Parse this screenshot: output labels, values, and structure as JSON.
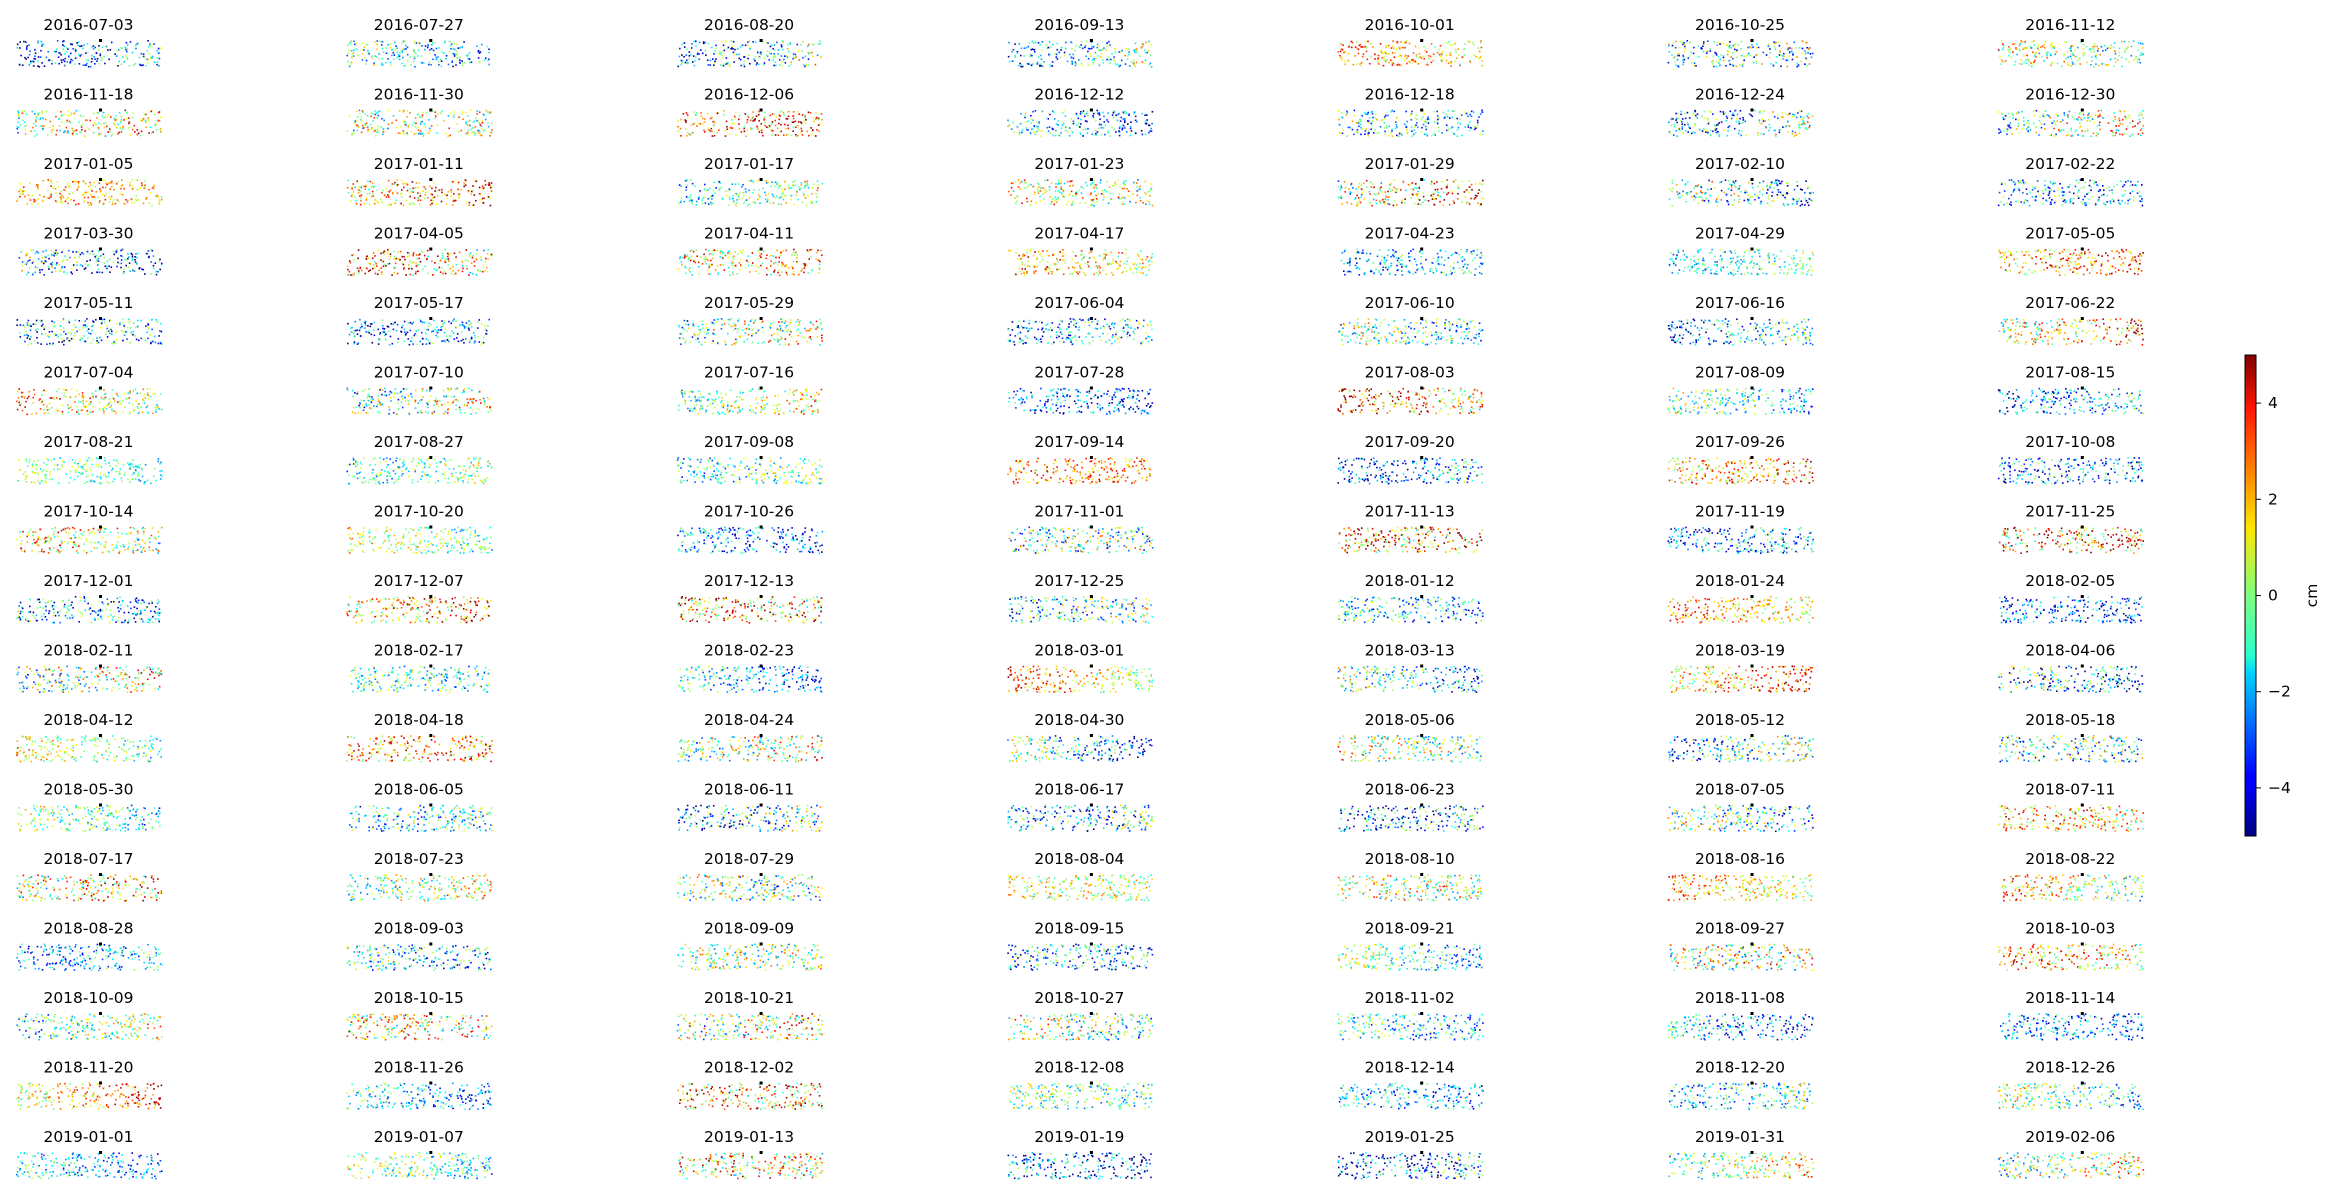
{
  "chart_data": {
    "type": "scatter",
    "layout": {
      "rows": 17,
      "cols": 7
    },
    "panel_titles": [
      "2016-07-03",
      "2016-07-27",
      "2016-08-20",
      "2016-09-13",
      "2016-10-01",
      "2016-10-25",
      "2016-11-12",
      "2016-11-18",
      "2016-11-30",
      "2016-12-06",
      "2016-12-12",
      "2016-12-18",
      "2016-12-24",
      "2016-12-30",
      "2017-01-05",
      "2017-01-11",
      "2017-01-17",
      "2017-01-23",
      "2017-01-29",
      "2017-02-10",
      "2017-02-22",
      "2017-03-30",
      "2017-04-05",
      "2017-04-11",
      "2017-04-17",
      "2017-04-23",
      "2017-04-29",
      "2017-05-05",
      "2017-05-11",
      "2017-05-17",
      "2017-05-29",
      "2017-06-04",
      "2017-06-10",
      "2017-06-16",
      "2017-06-22",
      "2017-07-04",
      "2017-07-10",
      "2017-07-16",
      "2017-07-28",
      "2017-08-03",
      "2017-08-09",
      "2017-08-15",
      "2017-08-21",
      "2017-08-27",
      "2017-09-08",
      "2017-09-14",
      "2017-09-20",
      "2017-09-26",
      "2017-10-08",
      "2017-10-14",
      "2017-10-20",
      "2017-10-26",
      "2017-11-01",
      "2017-11-13",
      "2017-11-19",
      "2017-11-25",
      "2017-12-01",
      "2017-12-07",
      "2017-12-13",
      "2017-12-25",
      "2018-01-12",
      "2018-01-24",
      "2018-02-05",
      "2018-02-11",
      "2018-02-17",
      "2018-02-23",
      "2018-03-01",
      "2018-03-13",
      "2018-03-19",
      "2018-04-06",
      "2018-04-12",
      "2018-04-18",
      "2018-04-24",
      "2018-04-30",
      "2018-05-06",
      "2018-05-12",
      "2018-05-18",
      "2018-05-30",
      "2018-06-05",
      "2018-06-11",
      "2018-06-17",
      "2018-06-23",
      "2018-07-05",
      "2018-07-11",
      "2018-07-17",
      "2018-07-23",
      "2018-07-29",
      "2018-08-04",
      "2018-08-10",
      "2018-08-16",
      "2018-08-22",
      "2018-08-28",
      "2018-09-03",
      "2018-09-09",
      "2018-09-15",
      "2018-09-21",
      "2018-09-27",
      "2018-10-03",
      "2018-10-09",
      "2018-10-15",
      "2018-10-21",
      "2018-10-27",
      "2018-11-02",
      "2018-11-08",
      "2018-11-14",
      "2018-11-20",
      "2018-11-26",
      "2018-12-02",
      "2018-12-08",
      "2018-12-14",
      "2018-12-20",
      "2018-12-26",
      "2019-01-01",
      "2019-01-07",
      "2019-01-13",
      "2019-01-19",
      "2019-01-25",
      "2019-01-31",
      "2019-02-06"
    ],
    "colormap": "jet",
    "colorbar": {
      "label": "cm",
      "range": [
        -5,
        5
      ],
      "ticks": [
        -4,
        -2,
        0,
        2,
        4
      ],
      "tick_labels": [
        "−4",
        "−2",
        "0",
        "2",
        "4"
      ]
    },
    "reference_point_color": "#000000",
    "axes_visible": false
  }
}
